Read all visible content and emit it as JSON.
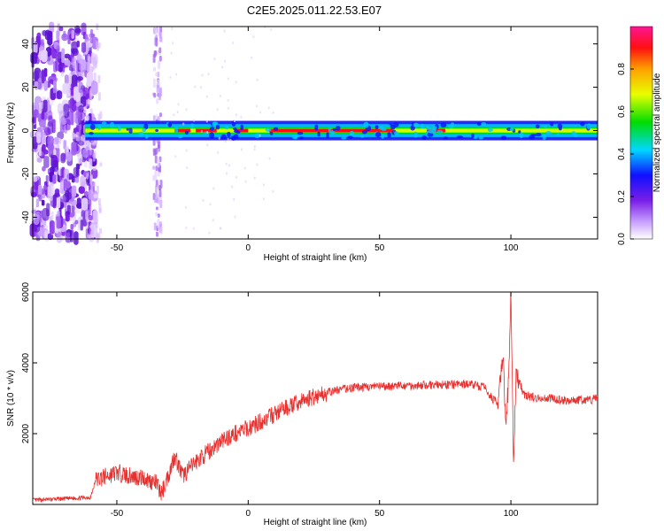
{
  "title": "C2E5.2025.011.22.53.E07",
  "chart_data": [
    {
      "type": "heatmap",
      "xlabel": "Height of straight line (km)",
      "ylabel": "Frequency (Hz)",
      "xlim": [
        -82,
        133
      ],
      "ylim": [
        -50,
        48
      ],
      "xticks": [
        -50,
        0,
        50,
        100
      ],
      "yticks": [
        -40,
        -20,
        0,
        20,
        40
      ],
      "colorbar": {
        "label": "Normalized spectral amplitude",
        "range": [
          0,
          1
        ],
        "ticks": [
          0.0,
          0.2,
          0.4,
          0.6,
          0.8
        ]
      },
      "colors": {
        "low": "#ffffff",
        "violet": "#8a2be2",
        "blue": "#1010ff",
        "green": "#00cc00",
        "red": "#ff0000",
        "pink": "#ff1493"
      }
    },
    {
      "type": "line",
      "xlabel": "Height of straight line (km)",
      "ylabel": "SNR (10 * v/v)",
      "xlim": [
        -82,
        133
      ],
      "ylim": [
        0,
        6000
      ],
      "xticks": [
        -50,
        0,
        50,
        100
      ],
      "yticks": [
        2000,
        4000,
        6000
      ],
      "line_color": "#e8302e",
      "series": [
        {
          "x": [
            -82,
            -60,
            -58,
            -50,
            -45,
            -40,
            -35,
            -33,
            -30,
            -28,
            -25,
            -20,
            -15,
            -10,
            -5,
            0,
            5,
            10,
            15,
            20,
            25,
            30,
            35,
            40,
            45,
            50,
            55,
            60,
            65,
            70,
            75,
            80,
            85,
            90,
            95,
            97,
            98,
            99,
            100,
            101,
            102,
            105,
            110,
            115,
            120,
            125,
            130,
            133
          ],
          "values": [
            120,
            200,
            700,
            900,
            800,
            750,
            600,
            300,
            900,
            1400,
            800,
            1200,
            1500,
            1800,
            2000,
            2150,
            2350,
            2550,
            2750,
            2900,
            3050,
            3150,
            3250,
            3300,
            3320,
            3330,
            3340,
            3360,
            3360,
            3380,
            3380,
            3390,
            3400,
            3300,
            2800,
            4200,
            2200,
            3300,
            6000,
            1100,
            3700,
            3100,
            3000,
            3000,
            2950,
            2950,
            2950,
            3000
          ]
        }
      ]
    }
  ]
}
